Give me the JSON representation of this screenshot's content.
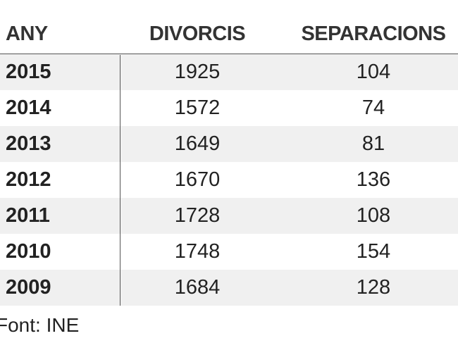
{
  "table": {
    "header": [
      "ANY",
      "DIVORCIS",
      "SEPARACIONS"
    ],
    "rows": [
      [
        2015,
        1925,
        104
      ],
      [
        2014,
        1572,
        74
      ],
      [
        2013,
        1649,
        81
      ],
      [
        2012,
        1670,
        136
      ],
      [
        2011,
        1728,
        108
      ],
      [
        2010,
        1748,
        154
      ],
      [
        2009,
        1684,
        128
      ]
    ]
  },
  "footer": "Font: INE"
}
